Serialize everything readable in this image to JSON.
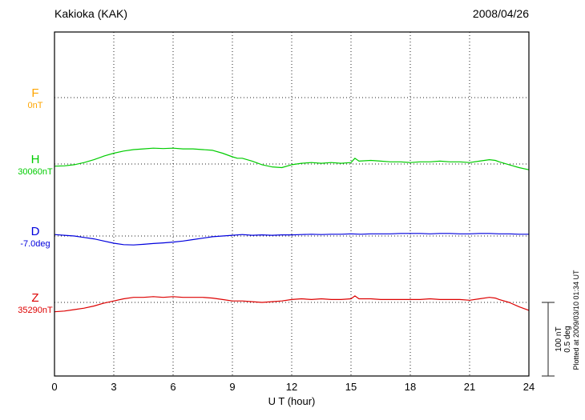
{
  "header": {
    "title": "Kakioka (KAK)",
    "date": "2008/04/26"
  },
  "axis": {
    "xlabel": "U T (hour)"
  },
  "scalebar": {
    "label_nt": "100 nT",
    "label_deg": "0.5 deg"
  },
  "footer_note": "Plotted at 2009/03/10 01:34 UT",
  "chart_data": {
    "type": "line",
    "title": "Kakioka (KAK) magnetogram 2008/04/26",
    "xlabel": "U T (hour)",
    "x_range": [
      0,
      24
    ],
    "x_ticks": [
      0,
      3,
      6,
      9,
      12,
      15,
      18,
      21,
      24
    ],
    "grid": "dotted vertical at each 3h tick, dotted horizontal at each trace baseline",
    "legend_position": "left of plot, one label pair per trace",
    "scale_reference": {
      "bar_nT": 100,
      "bar_deg": 0.5
    },
    "series": [
      {
        "id": "F",
        "label": "F",
        "baseline_label": "0nT",
        "unit": "nT",
        "color": "#FFA500",
        "points": []
      },
      {
        "id": "H",
        "label": "H",
        "baseline_label": "30060nT",
        "unit": "nT",
        "color": "#00CC00",
        "points": [
          [
            0,
            -3
          ],
          [
            0.5,
            -2.5
          ],
          [
            1,
            -1
          ],
          [
            1.5,
            2
          ],
          [
            2,
            6
          ],
          [
            2.5,
            11
          ],
          [
            3,
            15
          ],
          [
            3.5,
            18
          ],
          [
            4,
            20
          ],
          [
            4.5,
            21
          ],
          [
            5,
            22
          ],
          [
            5.5,
            21.5
          ],
          [
            6,
            22
          ],
          [
            6.5,
            21
          ],
          [
            7,
            21
          ],
          [
            7.5,
            20
          ],
          [
            8,
            19
          ],
          [
            8.5,
            15
          ],
          [
            9,
            10
          ],
          [
            9.25,
            8
          ],
          [
            9.5,
            8
          ],
          [
            10,
            4
          ],
          [
            10.5,
            -1
          ],
          [
            11,
            -4
          ],
          [
            11.5,
            -5
          ],
          [
            12,
            -1
          ],
          [
            12.5,
            1
          ],
          [
            13,
            2
          ],
          [
            13.5,
            1
          ],
          [
            14,
            2
          ],
          [
            14.5,
            1
          ],
          [
            15,
            2
          ],
          [
            15.2,
            8
          ],
          [
            15.4,
            4
          ],
          [
            16,
            5
          ],
          [
            16.5,
            4
          ],
          [
            17,
            3
          ],
          [
            17.5,
            3
          ],
          [
            18,
            2
          ],
          [
            18.5,
            3
          ],
          [
            19,
            3
          ],
          [
            19.5,
            4
          ],
          [
            20,
            3
          ],
          [
            20.5,
            3
          ],
          [
            21,
            2
          ],
          [
            21.5,
            4
          ],
          [
            22,
            6
          ],
          [
            22.3,
            5
          ],
          [
            22.5,
            3
          ],
          [
            23,
            -1
          ],
          [
            23.5,
            -5
          ],
          [
            24,
            -8
          ]
        ]
      },
      {
        "id": "D",
        "label": "D",
        "baseline_label": "-7.0deg",
        "unit": "deg",
        "color": "#0000DD",
        "points": [
          [
            0,
            0.01
          ],
          [
            0.5,
            0.005
          ],
          [
            1,
            0
          ],
          [
            1.5,
            -0.01
          ],
          [
            2,
            -0.02
          ],
          [
            2.5,
            -0.035
          ],
          [
            3,
            -0.05
          ],
          [
            3.5,
            -0.06
          ],
          [
            4,
            -0.062
          ],
          [
            4.5,
            -0.058
          ],
          [
            5,
            -0.052
          ],
          [
            5.5,
            -0.048
          ],
          [
            6,
            -0.042
          ],
          [
            6.5,
            -0.035
          ],
          [
            7,
            -0.025
          ],
          [
            7.5,
            -0.015
          ],
          [
            8,
            -0.005
          ],
          [
            8.5,
            0
          ],
          [
            9,
            0.005
          ],
          [
            9.5,
            0.01
          ],
          [
            10,
            0.005
          ],
          [
            10.5,
            0.008
          ],
          [
            11,
            0.005
          ],
          [
            11.5,
            0.008
          ],
          [
            12,
            0.008
          ],
          [
            12.5,
            0.01
          ],
          [
            13,
            0.012
          ],
          [
            13.5,
            0.01
          ],
          [
            14,
            0.012
          ],
          [
            14.5,
            0.012
          ],
          [
            15,
            0.015
          ],
          [
            15.5,
            0.012
          ],
          [
            16,
            0.015
          ],
          [
            16.5,
            0.015
          ],
          [
            17,
            0.015
          ],
          [
            17.5,
            0.018
          ],
          [
            18,
            0.018
          ],
          [
            18.5,
            0.018
          ],
          [
            19,
            0.015
          ],
          [
            19.5,
            0.018
          ],
          [
            20,
            0.018
          ],
          [
            20.5,
            0.015
          ],
          [
            21,
            0.015
          ],
          [
            21.5,
            0.018
          ],
          [
            22,
            0.018
          ],
          [
            22.5,
            0.015
          ],
          [
            23,
            0.015
          ],
          [
            23.5,
            0.012
          ],
          [
            24,
            0.012
          ]
        ]
      },
      {
        "id": "Z",
        "label": "Z",
        "baseline_label": "35290nT",
        "unit": "nT",
        "color": "#DD0000",
        "points": [
          [
            0,
            -13
          ],
          [
            0.5,
            -12
          ],
          [
            1,
            -10
          ],
          [
            1.5,
            -8
          ],
          [
            2,
            -5
          ],
          [
            2.5,
            -1
          ],
          [
            3,
            2
          ],
          [
            3.5,
            5
          ],
          [
            4,
            7
          ],
          [
            4.5,
            7
          ],
          [
            5,
            8
          ],
          [
            5.5,
            7
          ],
          [
            6,
            8
          ],
          [
            6.5,
            7
          ],
          [
            7,
            7
          ],
          [
            7.5,
            7
          ],
          [
            8,
            6
          ],
          [
            8.5,
            4
          ],
          [
            9,
            2
          ],
          [
            9.5,
            2
          ],
          [
            10,
            1
          ],
          [
            10.5,
            0
          ],
          [
            11,
            1
          ],
          [
            11.5,
            2
          ],
          [
            12,
            4
          ],
          [
            12.5,
            5
          ],
          [
            13,
            4
          ],
          [
            13.5,
            5
          ],
          [
            14,
            4
          ],
          [
            14.5,
            4
          ],
          [
            15,
            5
          ],
          [
            15.2,
            9
          ],
          [
            15.4,
            5
          ],
          [
            16,
            5
          ],
          [
            16.5,
            4
          ],
          [
            17,
            4
          ],
          [
            17.5,
            4
          ],
          [
            18,
            4
          ],
          [
            18.5,
            4
          ],
          [
            19,
            5
          ],
          [
            19.5,
            4
          ],
          [
            20,
            4
          ],
          [
            20.5,
            4
          ],
          [
            21,
            3
          ],
          [
            21.5,
            5
          ],
          [
            22,
            7
          ],
          [
            22.3,
            6
          ],
          [
            22.5,
            4
          ],
          [
            23,
            0
          ],
          [
            23.5,
            -6
          ],
          [
            24,
            -11
          ]
        ]
      }
    ]
  }
}
